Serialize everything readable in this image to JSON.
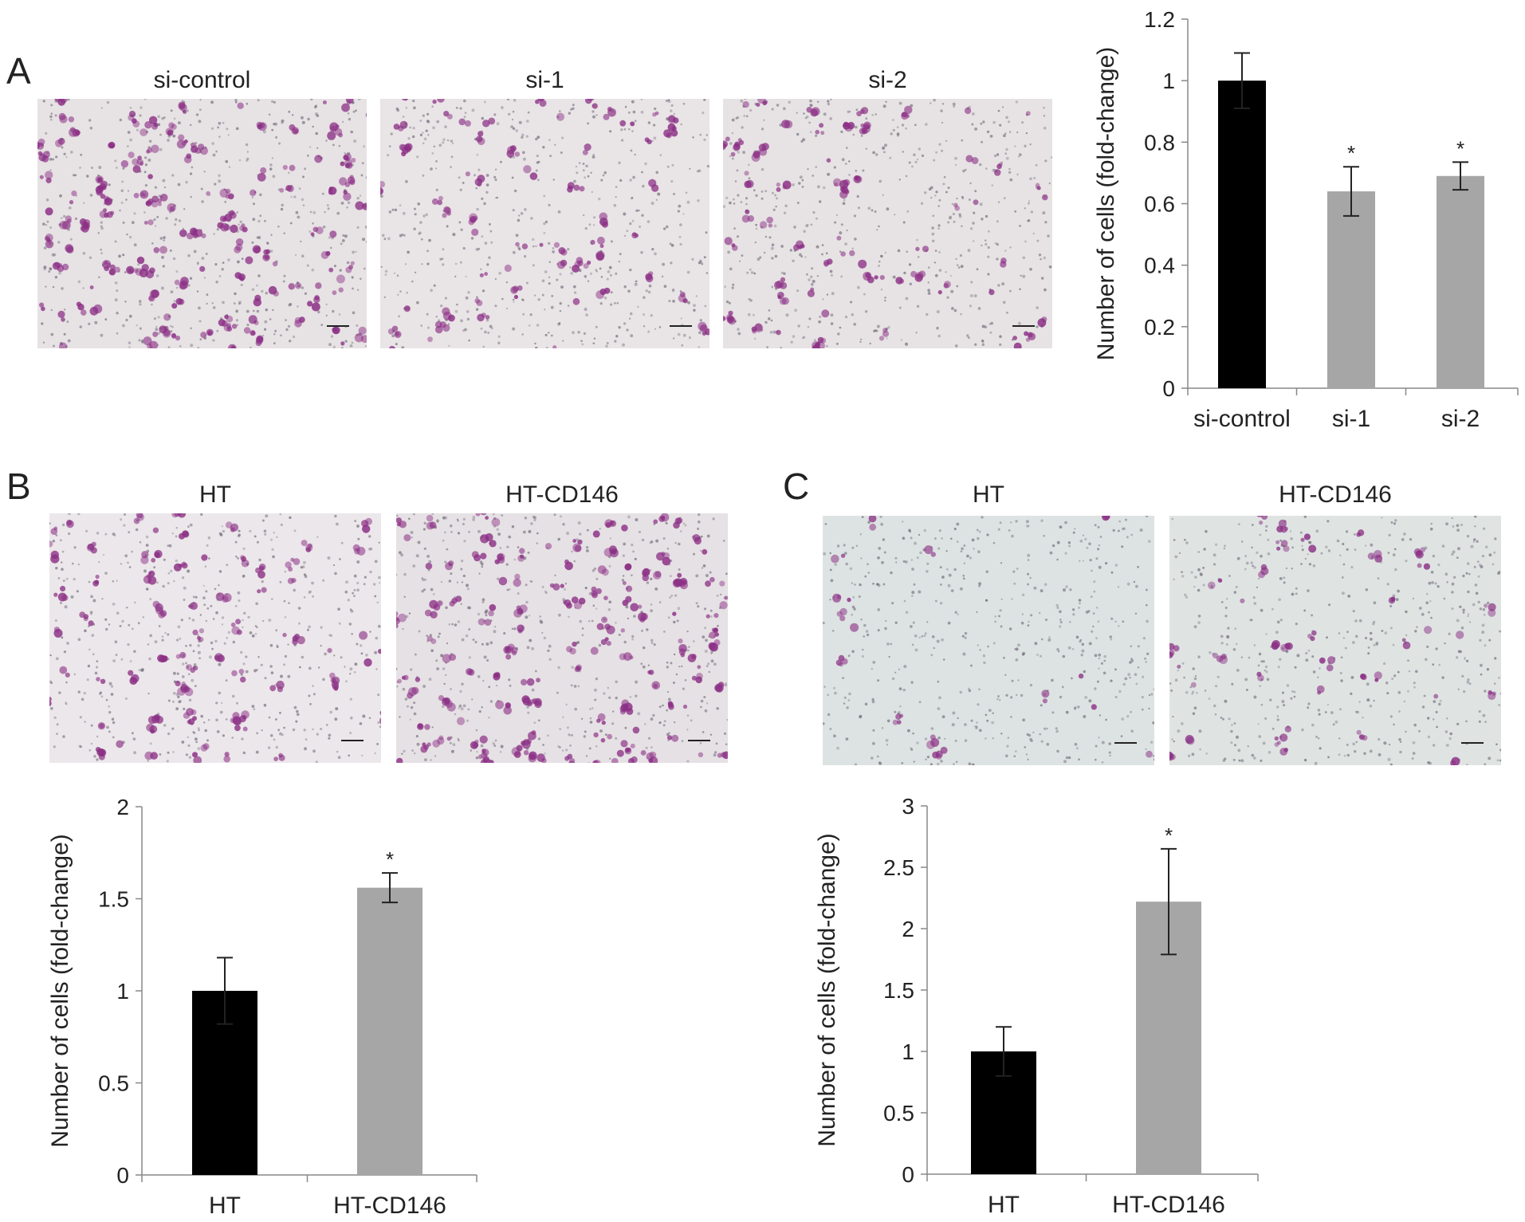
{
  "panels": {
    "A": {
      "letter": "A",
      "images": [
        {
          "label": "si-control",
          "bg": "#e7e2e4",
          "density": 1.0
        },
        {
          "label": "si-1",
          "bg": "#e9e4e6",
          "density": 0.45
        },
        {
          "label": "si-2",
          "bg": "#e7e3e4",
          "density": 0.5
        }
      ]
    },
    "B": {
      "letter": "B",
      "images": [
        {
          "label": "HT",
          "bg": "#ece7ea",
          "density": 0.55
        },
        {
          "label": "HT-CD146",
          "bg": "#e6e1e4",
          "density": 1.0
        }
      ]
    },
    "C": {
      "letter": "C",
      "images": [
        {
          "label": "HT",
          "bg": "#dde3e2",
          "density": 0.12
        },
        {
          "label": "HT-CD146",
          "bg": "#dfe4e3",
          "density": 0.3
        }
      ]
    }
  },
  "colors": {
    "control_bar": "#000000",
    "treatment_bar": "#a6a6a6",
    "stain": "#8b2f85"
  },
  "chart_data": [
    {
      "type": "bar",
      "panel": "A",
      "categories": [
        "si-control",
        "si-1",
        "si-2"
      ],
      "values": [
        1.0,
        0.64,
        0.69
      ],
      "errors": [
        0.09,
        0.08,
        0.045
      ],
      "significance": [
        "",
        "*",
        "*"
      ],
      "colors": [
        "#000000",
        "#a6a6a6",
        "#a6a6a6"
      ],
      "ylabel": "Number of cells (fold-change)",
      "ylim": [
        0,
        1.2
      ],
      "yticks": [
        "0",
        "0.2",
        "0.4",
        "0.6",
        "0.8",
        "1",
        "1.2"
      ],
      "ytick_values": [
        0,
        0.2,
        0.4,
        0.6,
        0.8,
        1.0,
        1.2
      ]
    },
    {
      "type": "bar",
      "panel": "B",
      "categories": [
        "HT",
        "HT-CD146"
      ],
      "values": [
        1.0,
        1.56
      ],
      "errors": [
        0.18,
        0.08
      ],
      "significance": [
        "",
        "*"
      ],
      "colors": [
        "#000000",
        "#a6a6a6"
      ],
      "ylabel": "Number of cells (fold-change)",
      "ylim": [
        0,
        2
      ],
      "yticks": [
        "0",
        "0.5",
        "1",
        "1.5",
        "2"
      ],
      "ytick_values": [
        0,
        0.5,
        1.0,
        1.5,
        2.0
      ]
    },
    {
      "type": "bar",
      "panel": "C",
      "categories": [
        "HT",
        "HT-CD146"
      ],
      "values": [
        1.0,
        2.22
      ],
      "errors": [
        0.2,
        0.43
      ],
      "significance": [
        "",
        "*"
      ],
      "colors": [
        "#000000",
        "#a6a6a6"
      ],
      "ylabel": "Number of cells (fold-change)",
      "ylim": [
        0,
        3
      ],
      "yticks": [
        "0",
        "0.5",
        "1",
        "1.5",
        "2",
        "2.5",
        "3"
      ],
      "ytick_values": [
        0,
        0.5,
        1.0,
        1.5,
        2.0,
        2.5,
        3.0
      ]
    }
  ]
}
